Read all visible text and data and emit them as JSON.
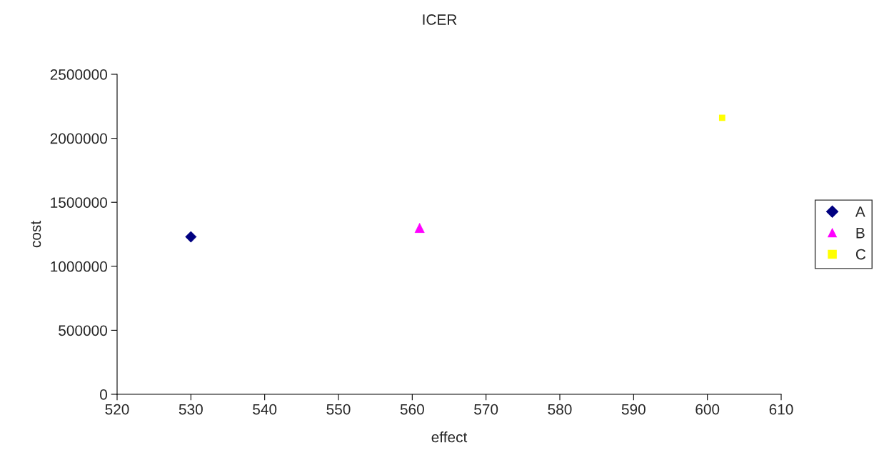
{
  "chart_data": {
    "type": "scatter",
    "title": "ICER",
    "xlabel": "effect",
    "ylabel": "cost",
    "series": [
      {
        "name": "A",
        "color": "#000080",
        "marker": "diamond",
        "x": [
          530
        ],
        "values": [
          1230000
        ]
      },
      {
        "name": "B",
        "color": "#ff00ff",
        "marker": "triangle",
        "x": [
          561
        ],
        "values": [
          1300000
        ]
      },
      {
        "name": "C",
        "color": "#ffff00",
        "marker": "square",
        "x": [
          602
        ],
        "values": [
          2160000
        ]
      }
    ],
    "xlim": [
      520,
      610
    ],
    "xticks": [
      520,
      530,
      540,
      550,
      560,
      570,
      580,
      590,
      600,
      610
    ],
    "ylim": [
      0,
      2500000
    ],
    "yticks": [
      0,
      500000,
      1000000,
      1500000,
      2000000,
      2500000
    ],
    "grid": false,
    "legend": "right"
  }
}
